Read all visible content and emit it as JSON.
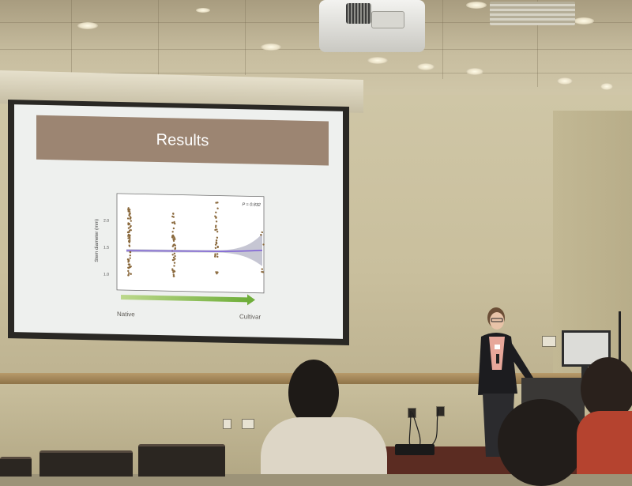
{
  "slide": {
    "title": "Results",
    "p_value": "P = 0.832",
    "y_axis_label": "Stem diameter (mm)",
    "y_ticks": [
      "2.0",
      "1.5",
      "1.0"
    ],
    "label_left": "Native",
    "label_right": "Cultivar"
  },
  "colors": {
    "banner": "#9c8572",
    "points": "#8b6a3e",
    "trend_line": "#7a5cd6",
    "confidence_band": "#b8b8c8",
    "arrow_start": "#bcd88c",
    "arrow_end": "#6fae3a"
  },
  "scene": {
    "description_items": [
      "projection-screen",
      "ceiling-projector",
      "presenter",
      "podium",
      "audience"
    ]
  }
}
